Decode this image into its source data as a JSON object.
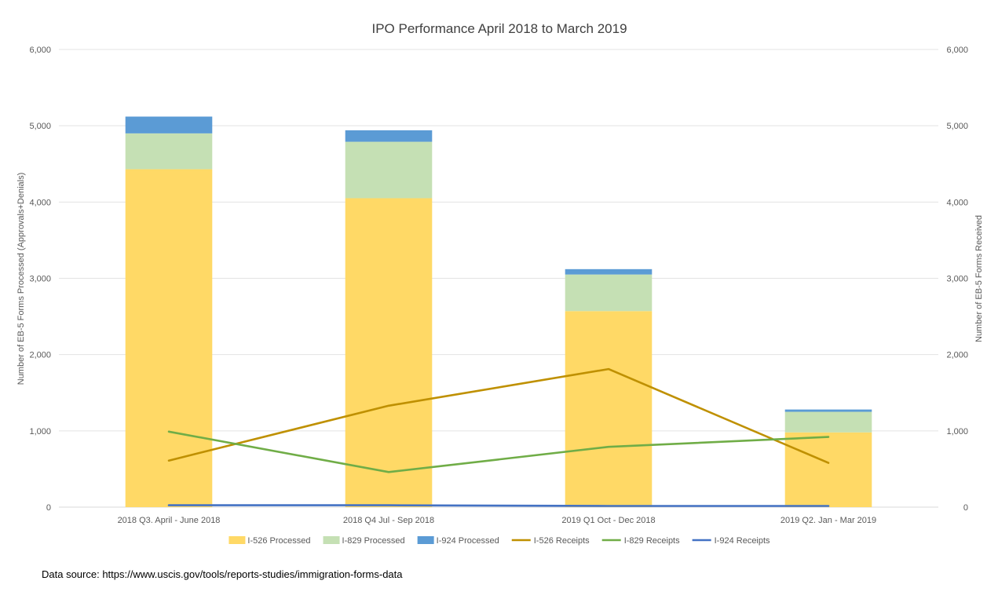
{
  "chart_data": {
    "type": "bar",
    "title": "IPO Performance April 2018 to March 2019",
    "ylabel": "Number  of EB-5 Forms Processed (Approvals+Denials)",
    "y2label": "Number  of EB-5 Forms Received",
    "ylim": [
      0,
      6000
    ],
    "y2lim": [
      0,
      6000
    ],
    "yticks": [
      "0",
      "1,000",
      "2,000",
      "3,000",
      "4,000",
      "5,000",
      "6,000"
    ],
    "y2ticks": [
      "0",
      "1,000",
      "2,000",
      "3,000",
      "4,000",
      "5,000",
      "6,000"
    ],
    "grid": true,
    "legend_position": "bottom",
    "categories": [
      "2018 Q3. April - June 2018",
      "2018 Q4 Jul - Sep 2018",
      "2019  Q1  Oct - Dec 2018",
      "2019 Q2. Jan - Mar 2019"
    ],
    "bar_series": [
      {
        "name": "I-526 Processed",
        "color": "#FFD966",
        "values": [
          4430,
          4050,
          2570,
          980
        ]
      },
      {
        "name": "I-829 Processed",
        "color": "#C5E0B4",
        "values": [
          470,
          740,
          480,
          270
        ]
      },
      {
        "name": "I-924 Processed",
        "color": "#5B9BD5",
        "values": [
          220,
          150,
          70,
          30
        ]
      }
    ],
    "line_series": [
      {
        "name": "I-526 Receipts",
        "color": "#BF9000",
        "axis": "secondary",
        "values": [
          610,
          1330,
          1810,
          580
        ]
      },
      {
        "name": "I-829 Receipts",
        "color": "#70AD47",
        "axis": "secondary",
        "values": [
          990,
          460,
          790,
          920
        ]
      },
      {
        "name": "I-924 Receipts",
        "color": "#4472C4",
        "axis": "secondary",
        "values": [
          25,
          25,
          15,
          15
        ]
      }
    ]
  },
  "source_note": "Data source: https://www.uscis.gov/tools/reports-studies/immigration-forms-data"
}
